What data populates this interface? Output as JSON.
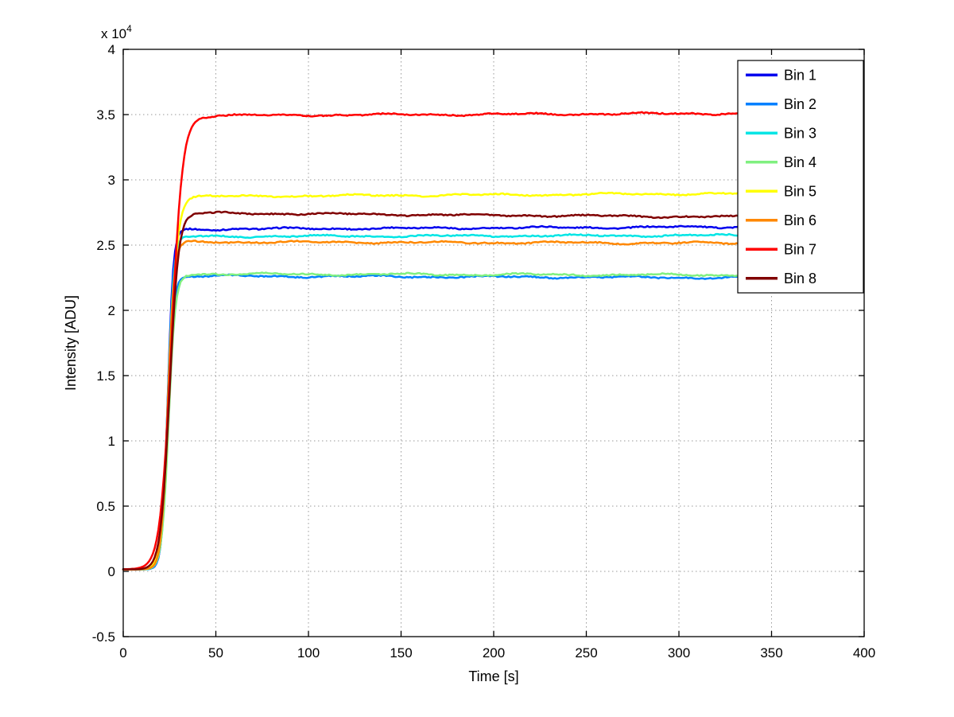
{
  "chart_data": {
    "type": "line",
    "title": "",
    "xlabel": "Time [s]",
    "ylabel": "Intensity [ADU]",
    "y_multiplier": "x 10^4",
    "xlim": [
      0,
      400
    ],
    "ylim": [
      -5000,
      40000
    ],
    "x_ticks": [
      0,
      50,
      100,
      150,
      200,
      250,
      300,
      350,
      400
    ],
    "x_tick_labels": [
      "0",
      "50",
      "100",
      "150",
      "200",
      "250",
      "300",
      "350",
      "400"
    ],
    "y_ticks": [
      -5000,
      0,
      5000,
      10000,
      15000,
      20000,
      25000,
      30000,
      35000,
      40000
    ],
    "y_tick_labels": [
      "-0.5",
      "0",
      "0.5",
      "1",
      "1.5",
      "2",
      "2.5",
      "3",
      "3.5",
      "4"
    ],
    "grid": true,
    "grid_style": "dotted",
    "legend_position": "top-right",
    "baseline_adu": 150,
    "x_start": 0,
    "x_end": 335,
    "rise_start_s": 20,
    "series": [
      {
        "name": "Bin 1",
        "color": "#0000EE",
        "plateau_adu": 26200,
        "drift_adu": 200,
        "rise_midpoint_s": 24.0,
        "rise_width_s": 1.5
      },
      {
        "name": "Bin 2",
        "color": "#0080FF",
        "plateau_adu": 22650,
        "drift_adu": -150,
        "rise_midpoint_s": 24.0,
        "rise_width_s": 1.6
      },
      {
        "name": "Bin 3",
        "color": "#00E5E5",
        "plateau_adu": 25650,
        "drift_adu": 100,
        "rise_midpoint_s": 24.0,
        "rise_width_s": 1.6
      },
      {
        "name": "Bin 4",
        "color": "#80F080",
        "plateau_adu": 22800,
        "drift_adu": -100,
        "rise_midpoint_s": 24.5,
        "rise_width_s": 1.8
      },
      {
        "name": "Bin 5",
        "color": "#FFFF00",
        "plateau_adu": 28700,
        "drift_adu": 250,
        "rise_midpoint_s": 25.0,
        "rise_width_s": 2.2
      },
      {
        "name": "Bin 6",
        "color": "#FF8800",
        "plateau_adu": 25250,
        "drift_adu": -100,
        "rise_midpoint_s": 24.0,
        "rise_width_s": 1.7
      },
      {
        "name": "Bin 7",
        "color": "#FF0000",
        "plateau_adu": 34900,
        "drift_adu": 200,
        "rise_midpoint_s": 26.0,
        "rise_width_s": 3.0
      },
      {
        "name": "Bin 8",
        "color": "#800000",
        "plateau_adu": 27500,
        "drift_adu": -350,
        "rise_midpoint_s": 25.0,
        "rise_width_s": 2.4
      }
    ]
  }
}
